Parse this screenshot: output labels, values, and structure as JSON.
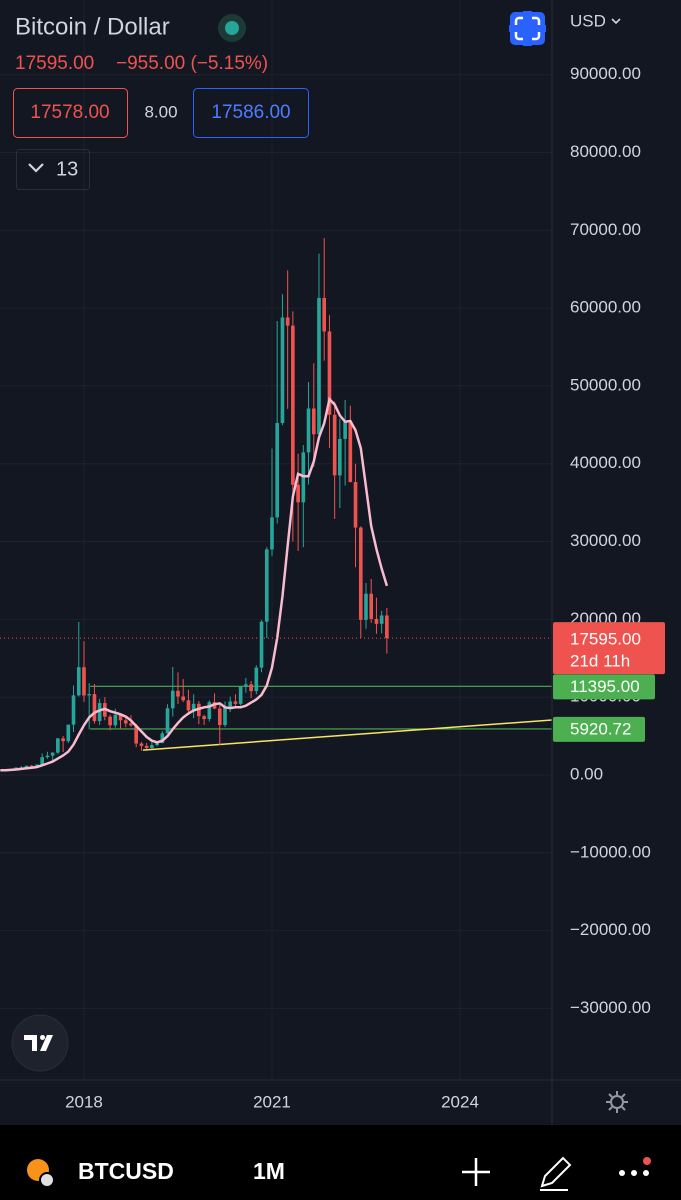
{
  "header": {
    "symbol_title": "Bitcoin / Dollar",
    "price": "17595.00",
    "change": "−955.00 (−5.15%)",
    "bid": "17578.00",
    "spread": "8.00",
    "ask": "17586.00",
    "indicator_count": "13",
    "currency": "USD"
  },
  "chart_data": {
    "type": "candlestick",
    "x": [
      2016.667,
      2016.75,
      2016.833,
      2016.917,
      2017.0,
      2017.083,
      2017.167,
      2017.25,
      2017.333,
      2017.417,
      2017.5,
      2017.583,
      2017.667,
      2017.75,
      2017.833,
      2017.917,
      2018.0,
      2018.083,
      2018.167,
      2018.25,
      2018.333,
      2018.417,
      2018.5,
      2018.583,
      2018.667,
      2018.75,
      2018.833,
      2018.917,
      2019.0,
      2019.083,
      2019.167,
      2019.25,
      2019.333,
      2019.417,
      2019.5,
      2019.583,
      2019.667,
      2019.75,
      2019.833,
      2019.917,
      2020.0,
      2020.083,
      2020.167,
      2020.25,
      2020.333,
      2020.417,
      2020.5,
      2020.583,
      2020.667,
      2020.75,
      2020.833,
      2020.917,
      2021.0,
      2021.083,
      2021.167,
      2021.25,
      2021.333,
      2021.417,
      2021.5,
      2021.583,
      2021.667,
      2021.75,
      2021.833,
      2021.917,
      2022.0,
      2022.083,
      2022.167,
      2022.25,
      2022.333,
      2022.417,
      2022.5,
      2022.583,
      2022.667,
      2022.75,
      2022.833
    ],
    "open": [
      573,
      609,
      698,
      742,
      963,
      970,
      1190,
      1071,
      1348,
      2286,
      2480,
      2875,
      4703,
      4338,
      6468,
      10233,
      13850,
      10222,
      10397,
      6926,
      9240,
      7500,
      6390,
      7730,
      7030,
      6625,
      6370,
      4040,
      3740,
      3460,
      3850,
      4105,
      5350,
      8575,
      10820,
      10090,
      9600,
      8300,
      9150,
      7560,
      7190,
      9350,
      8540,
      6420,
      8630,
      9450,
      9140,
      11350,
      11650,
      10780,
      13800,
      19700,
      28990,
      33110,
      45240,
      58800,
      57750,
      37300,
      35040,
      41460,
      47100,
      43790,
      61300,
      57000,
      46300,
      38500,
      43190,
      45540,
      37650,
      31800,
      19940,
      23300,
      20050,
      19430,
      20500
    ],
    "high": [
      628,
      740,
      756,
      975,
      1150,
      1210,
      1290,
      1350,
      2760,
      2980,
      2920,
      4770,
      5000,
      6470,
      11500,
      19666,
      17200,
      11800,
      11700,
      9800,
      10000,
      7750,
      8500,
      7770,
      7410,
      7680,
      6560,
      4250,
      4120,
      4210,
      4140,
      5640,
      9100,
      13880,
      13200,
      12330,
      10950,
      10370,
      9510,
      7750,
      9580,
      10500,
      9190,
      9460,
      10070,
      10380,
      11450,
      12480,
      12080,
      14100,
      19900,
      29300,
      41950,
      58350,
      61780,
      64850,
      59590,
      41300,
      42400,
      50500,
      52900,
      67000,
      69000,
      59100,
      47990,
      45800,
      48200,
      47450,
      40000,
      31960,
      24670,
      25200,
      22800,
      21100,
      21470
    ],
    "low": [
      570,
      603,
      684,
      742,
      752,
      920,
      890,
      1060,
      1330,
      2080,
      1830,
      2670,
      2950,
      4110,
      5520,
      10080,
      9400,
      5870,
      6600,
      6430,
      7030,
      5750,
      6080,
      5880,
      6140,
      6200,
      3560,
      3120,
      3350,
      3380,
      3700,
      4080,
      5320,
      7510,
      9110,
      9370,
      7710,
      7300,
      6530,
      6430,
      6860,
      8450,
      3850,
      6150,
      8100,
      8810,
      8920,
      10550,
      9880,
      10370,
      13200,
      17600,
      28130,
      32300,
      44950,
      47050,
      30000,
      28800,
      29280,
      37330,
      39600,
      43300,
      53250,
      42000,
      32900,
      34300,
      37200,
      37600,
      26700,
      17600,
      18780,
      19550,
      18150,
      18190,
      15600
    ],
    "close": [
      609,
      698,
      742,
      963,
      970,
      1190,
      1071,
      1348,
      2286,
      2480,
      2875,
      4703,
      4338,
      6468,
      10233,
      13850,
      10222,
      10397,
      6926,
      9240,
      7500,
      6390,
      7730,
      7030,
      6625,
      6370,
      4040,
      3740,
      3460,
      3850,
      4105,
      5350,
      8575,
      10820,
      10090,
      9600,
      8300,
      9150,
      7560,
      7190,
      9350,
      8540,
      6420,
      8630,
      9450,
      9140,
      11350,
      11650,
      10780,
      13800,
      19700,
      28990,
      33110,
      45240,
      58800,
      57750,
      37300,
      35040,
      41460,
      47100,
      43790,
      61300,
      57000,
      46300,
      38500,
      43190,
      45540,
      37650,
      31800,
      19940,
      23300,
      20050,
      19430,
      20500,
      17595
    ],
    "up_color": "#26a69a",
    "down_color": "#ef5350",
    "ma": {
      "color": "#f8bbd0",
      "values": [
        600,
        620,
        650,
        700,
        780,
        860,
        930,
        1020,
        1250,
        1480,
        1720,
        2100,
        2500,
        3000,
        3900,
        5200,
        6400,
        7400,
        8000,
        8300,
        8500,
        8200,
        8000,
        7800,
        7500,
        7000,
        6300,
        5600,
        4900,
        4400,
        4200,
        4400,
        5000,
        5900,
        6700,
        7400,
        7900,
        8300,
        8500,
        8700,
        8800,
        9100,
        9200,
        8700,
        8600,
        8700,
        8700,
        8900,
        9300,
        9700,
        10300,
        11500,
        13800,
        17600,
        23000,
        29500,
        35800,
        38700,
        38400,
        38400,
        40300,
        43400,
        45200,
        48300,
        47600,
        46200,
        45400,
        45500,
        44300,
        42000,
        37000,
        32000,
        29000,
        26500,
        24300
      ]
    },
    "xlim": [
      2016.66,
      2025.468
    ],
    "ylim": [
      -39200,
      99600
    ],
    "xticks": [
      2018,
      2021,
      2024
    ],
    "yticks": [
      {
        "value": -30000,
        "label": "−30000.00"
      },
      {
        "value": -20000,
        "label": "−20000.00"
      },
      {
        "value": -10000,
        "label": "−10000.00"
      },
      {
        "value": 0,
        "label": "0.00"
      },
      {
        "value": 10000,
        "label": "10000.00"
      },
      {
        "value": 20000,
        "label": "20000.00"
      },
      {
        "value": 30000,
        "label": "30000.00"
      },
      {
        "value": 40000,
        "label": "40000.00"
      },
      {
        "value": 50000,
        "label": "50000.00"
      },
      {
        "value": 60000,
        "label": "60000.00"
      },
      {
        "value": 70000,
        "label": "70000.00"
      },
      {
        "value": 80000,
        "label": "80000.00"
      },
      {
        "value": 90000,
        "label": "90000.00"
      }
    ],
    "grid": true,
    "price_line": {
      "value": 17595,
      "label": "17595.00",
      "countdown": "21d 11h",
      "color": "#ef5350"
    },
    "levels": [
      {
        "value": 11395,
        "label": "11395.00",
        "x_start": 2018.1
      },
      {
        "value": 5920.72,
        "label": "5920.72",
        "x_start": 2018.1
      }
    ],
    "level_color": "#4caf50",
    "trendline": {
      "x": [
        2018.94,
        2025.468
      ],
      "values": [
        3200,
        7070
      ],
      "color": "#f5e663"
    }
  },
  "toolbar": {
    "symbol": "BTCUSD",
    "interval": "1M"
  }
}
